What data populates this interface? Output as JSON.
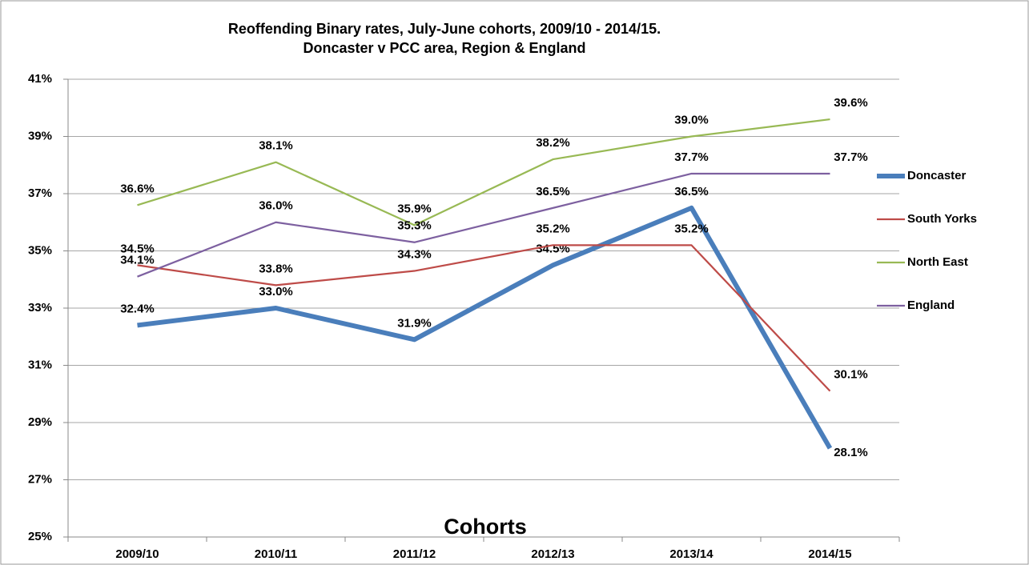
{
  "chart_data": {
    "type": "line",
    "title": "Reoffending Binary rates, July-June cohorts, 2009/10 - 2014/15.",
    "subtitle": "Doncaster v PCC area, Region & England",
    "x_label": "Cohorts",
    "categories": [
      "2009/10",
      "2010/11",
      "2011/12",
      "2012/13",
      "2013/14",
      "2014/15"
    ],
    "series": [
      {
        "name": "Doncaster",
        "color": "#4a7ebb",
        "values": [
          32.4,
          33.0,
          31.9,
          34.5,
          36.5,
          28.1
        ],
        "value_labels": [
          "32.4%",
          "33.0%",
          "31.9%",
          "34.5%",
          "36.5%",
          "28.1%"
        ]
      },
      {
        "name": "South Yorks",
        "color": "#be4b48",
        "values": [
          34.5,
          33.8,
          34.3,
          35.2,
          35.2,
          30.1
        ],
        "value_labels": [
          "34.5%",
          "33.8%",
          "34.3%",
          "35.2%",
          "35.2%",
          "30.1%"
        ]
      },
      {
        "name": "North East",
        "color": "#98b954",
        "values": [
          36.6,
          38.1,
          35.9,
          38.2,
          39.0,
          39.6
        ],
        "value_labels": [
          "36.6%",
          "38.1%",
          "35.9%",
          "38.2%",
          "39.0%",
          "39.6%"
        ]
      },
      {
        "name": "England",
        "color": "#7d60a0",
        "values": [
          34.1,
          36.0,
          35.3,
          36.5,
          37.7,
          37.7
        ],
        "value_labels": [
          "34.1%",
          "36.0%",
          "35.3%",
          "36.5%",
          "37.7%",
          "37.7%"
        ]
      }
    ],
    "ylim": [
      25,
      41
    ],
    "yticks": [
      {
        "value": 25,
        "label": "25%"
      },
      {
        "value": 27,
        "label": "27%"
      },
      {
        "value": 29,
        "label": "29%"
      },
      {
        "value": 31,
        "label": "31%"
      },
      {
        "value": 33,
        "label": "33%"
      },
      {
        "value": 35,
        "label": "35%"
      },
      {
        "value": 37,
        "label": "37%"
      },
      {
        "value": 39,
        "label": "39%"
      },
      {
        "value": 41,
        "label": "41%"
      }
    ],
    "grid": true,
    "legend": "right"
  }
}
